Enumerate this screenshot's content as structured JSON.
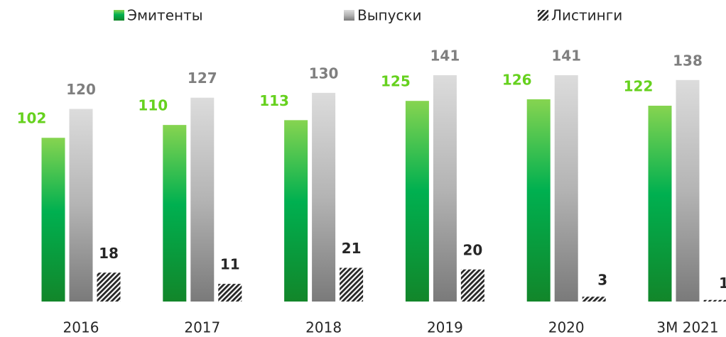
{
  "chart_data": {
    "type": "bar",
    "categories": [
      "2016",
      "2017",
      "2018",
      "2019",
      "2020",
      "3M 2021"
    ],
    "series": [
      {
        "name": "Эмитенты",
        "color": "#00b050",
        "label_color": "#66d11e",
        "fill": "green-gradient",
        "values": [
          102,
          110,
          113,
          125,
          126,
          122
        ]
      },
      {
        "name": "Выпуски",
        "color": "#a6a6a6",
        "label_color": "#7f7f7f",
        "fill": "grey-gradient",
        "values": [
          120,
          127,
          130,
          141,
          141,
          138
        ]
      },
      {
        "name": "Листинги",
        "color": "#262626",
        "label_color": "#262626",
        "fill": "hatch",
        "values": [
          18,
          11,
          21,
          20,
          3,
          1
        ]
      }
    ],
    "legend": "top"
  }
}
